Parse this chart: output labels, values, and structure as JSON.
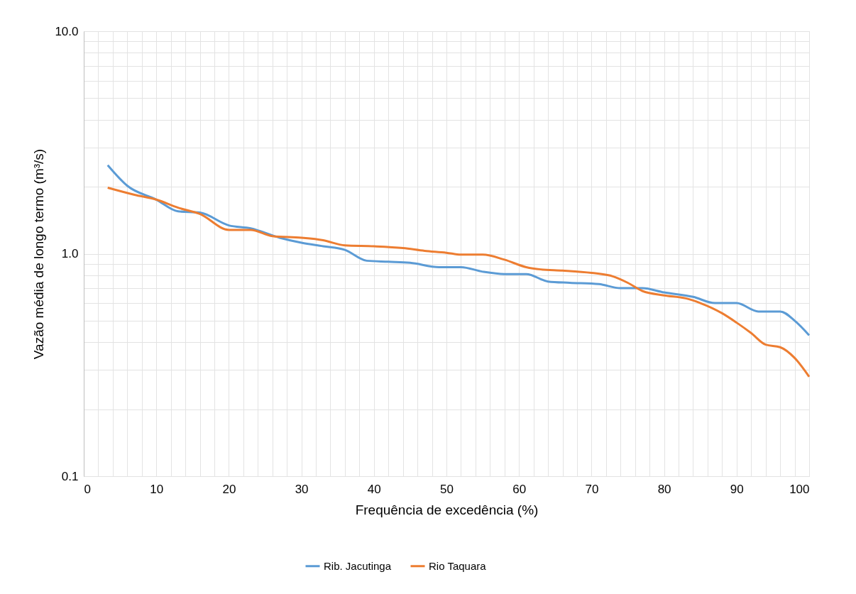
{
  "chart_data": {
    "type": "line",
    "xlabel": "Frequência de excedência (%)",
    "ylabel": "Vazão média de longo termo (m³/s)",
    "log": "y",
    "grid": true,
    "legend": "bottom",
    "line_style": "solid",
    "marker": "none",
    "xlim": [
      0,
      100
    ],
    "ylim": [
      0.1,
      10
    ],
    "xticks": [
      0,
      {
        "value": 2,
        "label": null
      },
      {
        "value": 4,
        "label": null
      },
      {
        "value": 6,
        "label": null
      },
      {
        "value": 8,
        "label": null
      },
      10,
      {
        "value": 12,
        "label": null
      },
      {
        "value": 14,
        "label": null
      },
      {
        "value": 16,
        "label": null
      },
      {
        "value": 18,
        "label": null
      },
      20,
      {
        "value": 22,
        "label": null
      },
      {
        "value": 24,
        "label": null
      },
      {
        "value": 26,
        "label": null
      },
      {
        "value": 28,
        "label": null
      },
      30,
      {
        "value": 32,
        "label": null
      },
      {
        "value": 34,
        "label": null
      },
      {
        "value": 36,
        "label": null
      },
      {
        "value": 38,
        "label": null
      },
      40,
      {
        "value": 42,
        "label": null
      },
      {
        "value": 44,
        "label": null
      },
      {
        "value": 46,
        "label": null
      },
      {
        "value": 48,
        "label": null
      },
      50,
      {
        "value": 52,
        "label": null
      },
      {
        "value": 54,
        "label": null
      },
      {
        "value": 56,
        "label": null
      },
      {
        "value": 58,
        "label": null
      },
      60,
      {
        "value": 62,
        "label": null
      },
      {
        "value": 64,
        "label": null
      },
      {
        "value": 66,
        "label": null
      },
      {
        "value": 68,
        "label": null
      },
      70,
      {
        "value": 72,
        "label": null
      },
      {
        "value": 74,
        "label": null
      },
      {
        "value": 76,
        "label": null
      },
      {
        "value": 78,
        "label": null
      },
      80,
      {
        "value": 82,
        "label": null
      },
      {
        "value": 84,
        "label": null
      },
      {
        "value": 86,
        "label": null
      },
      {
        "value": 88,
        "label": null
      },
      90,
      {
        "value": 92,
        "label": null
      },
      {
        "value": 94,
        "label": null
      },
      {
        "value": 96,
        "label": null
      },
      {
        "value": 98,
        "label": null
      },
      100
    ],
    "yticks": [
      {
        "value": 0.1,
        "label": "0.1"
      },
      {
        "value": 0.2,
        "label": null
      },
      {
        "value": 0.3,
        "label": null
      },
      {
        "value": 0.4,
        "label": null
      },
      {
        "value": 0.5,
        "label": null
      },
      {
        "value": 0.6,
        "label": null
      },
      {
        "value": 0.7,
        "label": null
      },
      {
        "value": 0.8,
        "label": null
      },
      {
        "value": 0.9,
        "label": null
      },
      {
        "value": 1,
        "label": "1.0"
      },
      {
        "value": 2,
        "label": null
      },
      {
        "value": 3,
        "label": null
      },
      {
        "value": 4,
        "label": null
      },
      {
        "value": 5,
        "label": null
      },
      {
        "value": 6,
        "label": null
      },
      {
        "value": 7,
        "label": null
      },
      {
        "value": 8,
        "label": null
      },
      {
        "value": 9,
        "label": null
      },
      {
        "value": 10,
        "label": "10.0"
      }
    ],
    "series": [
      {
        "name": "Rib. Jacutinga",
        "color": "#5b9bd5",
        "x": [
          3.3,
          6,
          10,
          13,
          16,
          20,
          23,
          27,
          30,
          33,
          36,
          39,
          42,
          45,
          49,
          52,
          55,
          58,
          61,
          64,
          67,
          71,
          74,
          77,
          80,
          84,
          87,
          90,
          93,
          96,
          98,
          100
        ],
        "values": [
          2.5,
          2.02,
          1.75,
          1.55,
          1.53,
          1.34,
          1.3,
          1.18,
          1.12,
          1.08,
          1.04,
          0.93,
          0.92,
          0.91,
          0.87,
          0.87,
          0.83,
          0.81,
          0.81,
          0.75,
          0.74,
          0.73,
          0.7,
          0.7,
          0.67,
          0.64,
          0.6,
          0.6,
          0.55,
          0.55,
          0.5,
          0.43
        ]
      },
      {
        "name": "Rio Taquara",
        "color": "#ed7d31",
        "x": [
          3.3,
          7,
          10,
          13,
          16,
          20,
          23,
          26,
          30,
          33,
          36,
          40,
          44,
          47,
          50,
          52,
          55,
          58,
          61,
          63,
          66,
          70,
          73,
          75,
          77,
          80,
          83,
          85,
          88,
          90,
          92,
          94,
          96,
          98,
          100
        ],
        "values": [
          1.98,
          1.84,
          1.75,
          1.61,
          1.51,
          1.28,
          1.28,
          1.2,
          1.18,
          1.15,
          1.09,
          1.08,
          1.06,
          1.03,
          1.01,
          0.99,
          0.99,
          0.94,
          0.87,
          0.85,
          0.84,
          0.82,
          0.79,
          0.74,
          0.68,
          0.65,
          0.63,
          0.6,
          0.54,
          0.49,
          0.44,
          0.39,
          0.38,
          0.34,
          0.28
        ]
      }
    ]
  }
}
